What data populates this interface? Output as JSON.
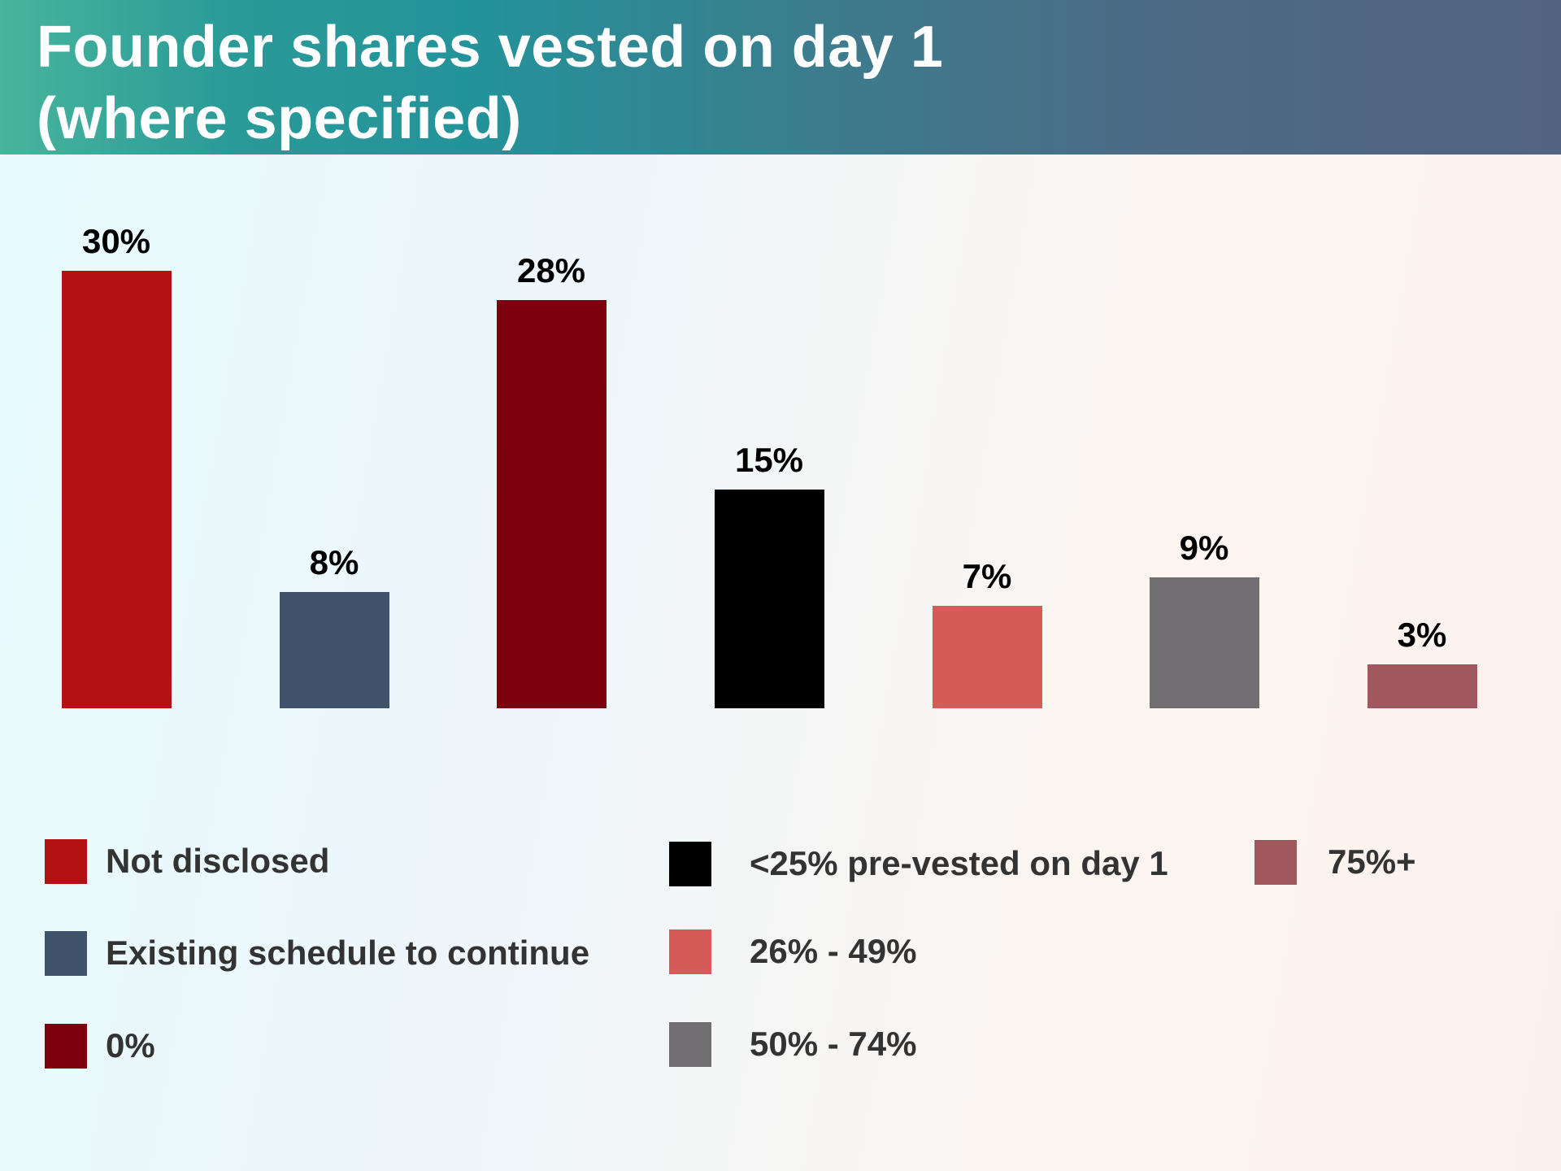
{
  "title": {
    "line1": "Founder shares vested on day 1",
    "line2": "(where specified)"
  },
  "chart_data": {
    "type": "bar",
    "title": "Founder shares vested on day 1 (where specified)",
    "categories": [
      "Not disclosed",
      "Existing schedule to continue",
      "0%",
      "<25% pre-vested on day 1",
      "26% - 49%",
      "50% - 74%",
      "75%+"
    ],
    "values": [
      30,
      8,
      28,
      15,
      7,
      9,
      3
    ],
    "value_labels": [
      "30%",
      "8%",
      "28%",
      "15%",
      "7%",
      "9%",
      "3%"
    ],
    "colors": [
      "#b31212",
      "#41526b",
      "#7c000d",
      "#000000",
      "#d65a58",
      "#716e72",
      "#a0575d"
    ],
    "xlabel": "",
    "ylabel": "",
    "ylim": [
      0,
      30
    ],
    "grid": false,
    "legend_position": "bottom"
  },
  "legend": [
    {
      "label": "Not disclosed",
      "color": "#b31212"
    },
    {
      "label": "Existing schedule to continue",
      "color": "#41526b"
    },
    {
      "label": "0%",
      "color": "#7c000d"
    },
    {
      "label": "<25% pre-vested on day 1",
      "color": "#000000"
    },
    {
      "label": "26% - 49%",
      "color": "#d65a58"
    },
    {
      "label": "50% - 74%",
      "color": "#716e72"
    },
    {
      "label": "75%+",
      "color": "#a0575d"
    }
  ]
}
